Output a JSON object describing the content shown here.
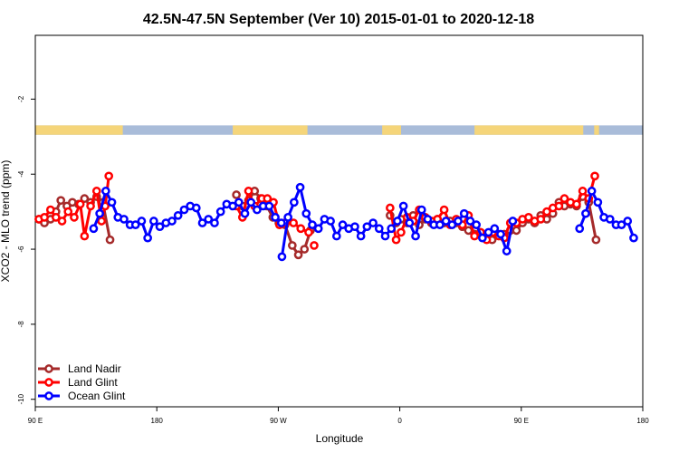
{
  "chart_data": {
    "type": "line",
    "title": "42.5N-47.5N September (Ver 10)   2015-01-01 to 2020-12-18",
    "xlabel": "Longitude",
    "ylabel": "XCO2 - MLO trend (ppm)",
    "xlim": [
      0,
      100
    ],
    "ylim": [
      -10.2,
      -0.3
    ],
    "x_ticks": [
      {
        "x": 0,
        "label": "90 E"
      },
      {
        "x": 20,
        "label": "180"
      },
      {
        "x": 40,
        "label": "90 W"
      },
      {
        "x": 60,
        "label": "0"
      },
      {
        "x": 80,
        "label": "90 E"
      },
      {
        "x": 100,
        "label": "180"
      }
    ],
    "y_ticks": [
      {
        "y": -2,
        "label": "-2"
      },
      {
        "y": -4,
        "label": "-4"
      },
      {
        "y": -6,
        "label": "-6"
      },
      {
        "y": -8,
        "label": "-8"
      },
      {
        "y": -10,
        "label": "-10"
      }
    ],
    "land_mask": {
      "y_range": [
        -2.95,
        -2.7
      ],
      "land_color": "#f5d57a",
      "ocean_color": "#a9bcd9",
      "land_segments": [
        [
          0,
          14.4
        ],
        [
          32.5,
          44.8
        ],
        [
          57.1,
          60.2
        ],
        [
          72.3,
          90.2
        ],
        [
          92.0,
          92.8
        ]
      ]
    },
    "legend_position": "bottom-left",
    "series": [
      {
        "name": "Land Nadir",
        "color": "#a52a2a",
        "segments": [
          [
            [
              0.6,
              -5.2
            ],
            [
              1.5,
              -5.3
            ],
            [
              2.5,
              -5.2
            ],
            [
              3.4,
              -5.0
            ],
            [
              4.2,
              -4.7
            ],
            [
              5.2,
              -4.85
            ],
            [
              6.1,
              -4.75
            ],
            [
              7.1,
              -4.8
            ],
            [
              8.1,
              -4.65
            ],
            [
              9.1,
              -4.75
            ],
            [
              10.1,
              -4.6
            ],
            [
              11.1,
              -4.75
            ],
            [
              12.3,
              -5.75
            ]
          ],
          [
            [
              33.1,
              -4.55
            ],
            [
              34.1,
              -4.85
            ],
            [
              35.1,
              -4.7
            ],
            [
              36.1,
              -4.45
            ],
            [
              37.1,
              -4.65
            ],
            [
              38.1,
              -4.85
            ],
            [
              39.1,
              -5.15
            ],
            [
              40.1,
              -5.3
            ],
            [
              41.1,
              -5.35
            ],
            [
              42.3,
              -5.9
            ],
            [
              43.3,
              -6.15
            ],
            [
              44.3,
              -6.0
            ],
            [
              45.3,
              -5.5
            ]
          ],
          [
            [
              58.4,
              -5.1
            ],
            [
              59.4,
              -5.3
            ],
            [
              60.2,
              -5.2
            ],
            [
              61.2,
              -5.3
            ],
            [
              62.2,
              -5.1
            ],
            [
              63.2,
              -5.35
            ],
            [
              64.2,
              -5.2
            ],
            [
              65.2,
              -5.3
            ],
            [
              66.2,
              -5.2
            ],
            [
              67.3,
              -5.3
            ],
            [
              68.3,
              -5.25
            ],
            [
              69.3,
              -5.3
            ],
            [
              70.3,
              -5.4
            ],
            [
              71.3,
              -5.5
            ],
            [
              72.3,
              -5.6
            ],
            [
              73.3,
              -5.55
            ],
            [
              74.3,
              -5.65
            ],
            [
              75.2,
              -5.75
            ],
            [
              76.2,
              -5.6
            ],
            [
              77.2,
              -5.6
            ],
            [
              78.2,
              -5.5
            ]
          ],
          [
            [
              79.2,
              -5.5
            ],
            [
              80.2,
              -5.3
            ],
            [
              81.2,
              -5.2
            ],
            [
              82.2,
              -5.3
            ],
            [
              83.2,
              -5.1
            ],
            [
              84.2,
              -5.2
            ],
            [
              85.2,
              -5.05
            ],
            [
              86.2,
              -4.75
            ],
            [
              87.1,
              -4.85
            ],
            [
              88.1,
              -4.8
            ],
            [
              89.1,
              -4.85
            ],
            [
              90.1,
              -4.6
            ],
            [
              91.1,
              -4.75
            ],
            [
              92.3,
              -5.75
            ]
          ]
        ]
      },
      {
        "name": "Land Glint",
        "color": "#ff0000",
        "segments": [
          [
            [
              0.6,
              -5.2
            ],
            [
              1.5,
              -5.15
            ],
            [
              2.5,
              -4.95
            ],
            [
              3.4,
              -5.15
            ],
            [
              4.4,
              -5.25
            ],
            [
              5.4,
              -5.0
            ],
            [
              6.4,
              -5.15
            ],
            [
              7.4,
              -4.8
            ],
            [
              8.1,
              -5.65
            ],
            [
              9.1,
              -4.85
            ],
            [
              10.1,
              -4.45
            ],
            [
              10.9,
              -5.25
            ],
            [
              11.5,
              -4.85
            ],
            [
              12.1,
              -4.05
            ]
          ],
          [
            [
              33.1,
              -4.85
            ],
            [
              34.1,
              -5.15
            ],
            [
              35.1,
              -4.45
            ],
            [
              36.1,
              -4.85
            ],
            [
              37.3,
              -4.65
            ],
            [
              38.2,
              -4.65
            ],
            [
              39.2,
              -4.75
            ],
            [
              40.2,
              -5.35
            ],
            [
              41.1,
              -5.3
            ],
            [
              42.5,
              -5.3
            ],
            [
              43.7,
              -5.45
            ],
            [
              45.0,
              -5.55
            ]
          ],
          [
            [
              45.9,
              -5.9
            ]
          ],
          [
            [
              58.4,
              -4.9
            ],
            [
              59.4,
              -5.75
            ],
            [
              60.2,
              -5.55
            ],
            [
              61.2,
              -5.15
            ],
            [
              62.2,
              -5.25
            ],
            [
              63.2,
              -4.95
            ],
            [
              64.2,
              -5.15
            ],
            [
              65.2,
              -5.25
            ],
            [
              66.2,
              -5.2
            ],
            [
              67.3,
              -4.95
            ],
            [
              68.3,
              -5.35
            ],
            [
              69.3,
              -5.2
            ],
            [
              70.3,
              -5.35
            ],
            [
              71.3,
              -5.1
            ],
            [
              72.3,
              -5.65
            ],
            [
              73.3,
              -5.55
            ],
            [
              74.3,
              -5.75
            ],
            [
              75.3,
              -5.55
            ],
            [
              76.3,
              -5.65
            ],
            [
              77.2,
              -5.7
            ],
            [
              78.2,
              -5.3
            ],
            [
              79.2,
              -5.3
            ],
            [
              80.2,
              -5.2
            ],
            [
              81.2,
              -5.15
            ],
            [
              82.2,
              -5.25
            ],
            [
              83.2,
              -5.2
            ],
            [
              84.2,
              -5.0
            ],
            [
              85.2,
              -4.9
            ],
            [
              86.2,
              -4.85
            ],
            [
              87.1,
              -4.65
            ],
            [
              88.1,
              -4.75
            ],
            [
              89.1,
              -4.8
            ],
            [
              90.1,
              -4.45
            ],
            [
              91.1,
              -4.65
            ],
            [
              92.1,
              -4.05
            ]
          ]
        ]
      },
      {
        "name": "Ocean Glint",
        "color": "#0000ff",
        "segments": [
          [
            [
              9.6,
              -5.45
            ],
            [
              10.6,
              -5.05
            ],
            [
              11.6,
              -4.45
            ],
            [
              12.6,
              -4.75
            ],
            [
              13.6,
              -5.15
            ],
            [
              14.6,
              -5.2
            ],
            [
              15.6,
              -5.35
            ],
            [
              16.5,
              -5.35
            ],
            [
              17.5,
              -5.25
            ],
            [
              18.5,
              -5.7
            ],
            [
              19.5,
              -5.25
            ],
            [
              20.5,
              -5.4
            ],
            [
              21.5,
              -5.3
            ],
            [
              22.5,
              -5.25
            ],
            [
              23.5,
              -5.1
            ],
            [
              24.5,
              -4.95
            ],
            [
              25.5,
              -4.85
            ],
            [
              26.5,
              -4.9
            ],
            [
              27.5,
              -5.3
            ],
            [
              28.5,
              -5.2
            ],
            [
              29.5,
              -5.3
            ],
            [
              30.5,
              -5.0
            ],
            [
              31.5,
              -4.8
            ],
            [
              32.5,
              -4.85
            ],
            [
              33.5,
              -4.75
            ],
            [
              34.5,
              -5.05
            ],
            [
              35.5,
              -4.75
            ],
            [
              36.5,
              -4.95
            ],
            [
              37.5,
              -4.85
            ],
            [
              38.5,
              -4.85
            ],
            [
              39.5,
              -5.15
            ],
            [
              40.5,
              -5.3
            ]
          ],
          [
            [
              40.6,
              -6.2
            ],
            [
              41.6,
              -5.15
            ],
            [
              42.6,
              -4.75
            ],
            [
              43.6,
              -4.35
            ],
            [
              44.6,
              -5.05
            ],
            [
              45.6,
              -5.35
            ],
            [
              46.6,
              -5.45
            ],
            [
              47.6,
              -5.2
            ],
            [
              48.6,
              -5.25
            ],
            [
              49.6,
              -5.65
            ],
            [
              50.6,
              -5.35
            ],
            [
              51.6,
              -5.45
            ],
            [
              52.6,
              -5.4
            ],
            [
              53.6,
              -5.65
            ],
            [
              54.6,
              -5.4
            ],
            [
              55.6,
              -5.3
            ],
            [
              56.6,
              -5.45
            ],
            [
              57.6,
              -5.65
            ],
            [
              58.6,
              -5.45
            ],
            [
              59.6,
              -5.25
            ],
            [
              60.6,
              -4.85
            ],
            [
              61.6,
              -5.3
            ],
            [
              62.6,
              -5.65
            ],
            [
              63.6,
              -4.95
            ],
            [
              64.6,
              -5.2
            ],
            [
              65.6,
              -5.35
            ],
            [
              66.6,
              -5.35
            ],
            [
              67.6,
              -5.25
            ],
            [
              68.6,
              -5.35
            ],
            [
              69.6,
              -5.25
            ],
            [
              70.6,
              -5.05
            ],
            [
              71.6,
              -5.25
            ],
            [
              72.6,
              -5.35
            ],
            [
              73.6,
              -5.7
            ],
            [
              74.6,
              -5.55
            ],
            [
              75.6,
              -5.45
            ],
            [
              76.6,
              -5.6
            ],
            [
              77.6,
              -6.05
            ],
            [
              78.6,
              -5.25
            ]
          ],
          [
            [
              89.6,
              -5.45
            ],
            [
              90.6,
              -5.05
            ],
            [
              91.6,
              -4.45
            ],
            [
              92.6,
              -4.75
            ],
            [
              93.6,
              -5.15
            ],
            [
              94.6,
              -5.2
            ],
            [
              95.6,
              -5.35
            ],
            [
              96.5,
              -5.35
            ],
            [
              97.5,
              -5.25
            ],
            [
              98.5,
              -5.7
            ]
          ]
        ]
      }
    ]
  }
}
